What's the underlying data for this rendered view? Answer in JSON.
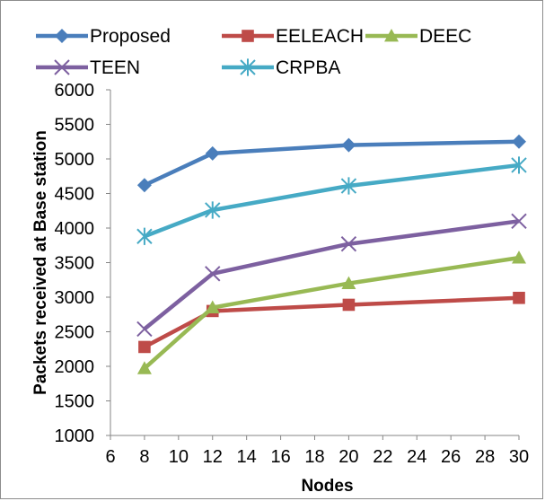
{
  "chart_data": {
    "type": "line",
    "xlabel": "Nodes",
    "ylabel": "Packets received at Base station",
    "xlim": [
      6,
      30
    ],
    "ylim": [
      1000,
      6000
    ],
    "x_ticks": [
      6,
      8,
      10,
      12,
      14,
      16,
      18,
      20,
      22,
      24,
      26,
      28,
      30
    ],
    "y_ticks": [
      1000,
      1500,
      2000,
      2500,
      3000,
      3500,
      4000,
      4500,
      5000,
      5500,
      6000
    ],
    "x": [
      8,
      12,
      20,
      30
    ],
    "grid": false,
    "legend_position": "top",
    "series": [
      {
        "name": "Proposed",
        "values": [
          4620,
          5080,
          5200,
          5250
        ],
        "color": "#4a7ebb",
        "marker": "diamond"
      },
      {
        "name": "EELEACH",
        "values": [
          2280,
          2800,
          2890,
          2990
        ],
        "color": "#be4b48",
        "marker": "square"
      },
      {
        "name": "DEEC",
        "values": [
          1970,
          2850,
          3200,
          3570
        ],
        "color": "#98b954",
        "marker": "triangle"
      },
      {
        "name": "TEEN",
        "values": [
          2540,
          3340,
          3770,
          4100
        ],
        "color": "#7d60a0",
        "marker": "x"
      },
      {
        "name": "CRPBA",
        "values": [
          3880,
          4260,
          4610,
          4910
        ],
        "color": "#46aac5",
        "marker": "star"
      }
    ]
  }
}
